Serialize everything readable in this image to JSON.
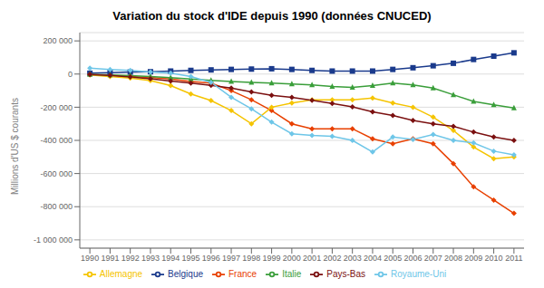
{
  "chart_data": {
    "type": "line",
    "title": "Variation du stock d'IDE depuis 1990 (données CNUCED)",
    "y_label": "Millions d'US $ courants",
    "x": [
      1990,
      1991,
      1992,
      1993,
      1994,
      1995,
      1996,
      1997,
      1998,
      1999,
      2000,
      2001,
      2002,
      2003,
      2004,
      2005,
      2006,
      2007,
      2008,
      2009,
      2010,
      2011
    ],
    "xlim": [
      1989.5,
      2011.5
    ],
    "xticks": [
      1990,
      1991,
      1992,
      1993,
      1994,
      1995,
      1996,
      1997,
      1998,
      1999,
      2000,
      2001,
      2002,
      2003,
      2004,
      2005,
      2006,
      2007,
      2008,
      2009,
      2010,
      2011
    ],
    "ylim": [
      -1050000,
      250000
    ],
    "yticks": [
      {
        "value": -1000000,
        "label": "-1 000 000"
      },
      {
        "value": -800000,
        "label": "-800 000"
      },
      {
        "value": -600000,
        "label": "-600 000"
      },
      {
        "value": -400000,
        "label": "-400 000"
      },
      {
        "value": -200000,
        "label": "-200 000"
      },
      0,
      {
        "value": 200000,
        "label": "200 000"
      }
    ],
    "grid": true,
    "legend": "bottom",
    "series": [
      {
        "name": "Belgique",
        "color": "#1a3a8c",
        "marker": "square",
        "values": [
          5000,
          8000,
          12000,
          14000,
          18000,
          22000,
          25000,
          28000,
          30000,
          32000,
          28000,
          22000,
          18000,
          18000,
          18000,
          28000,
          38000,
          50000,
          65000,
          88000,
          108000,
          128000
        ]
      },
      {
        "name": "France",
        "color": "#e84000",
        "marker": "diamond",
        "values": [
          -2000,
          -8000,
          -15000,
          -20000,
          -30000,
          -45000,
          -55000,
          -100000,
          -155000,
          -220000,
          -300000,
          -330000,
          -330000,
          -330000,
          -390000,
          -420000,
          -390000,
          -420000,
          -540000,
          -680000,
          -760000,
          -840000
        ]
      },
      {
        "name": "Allemagne",
        "color": "#f5c400",
        "marker": "diamond",
        "values": [
          -5000,
          -15000,
          -25000,
          -40000,
          -70000,
          -120000,
          -160000,
          -220000,
          -300000,
          -200000,
          -175000,
          -155000,
          -155000,
          -155000,
          -145000,
          -175000,
          -200000,
          -260000,
          -340000,
          -440000,
          -510000,
          -500000
        ]
      },
      {
        "name": "Italie",
        "color": "#3a9e3a",
        "marker": "triangle",
        "values": [
          -2000,
          -5000,
          -10000,
          -15000,
          -22000,
          -30000,
          -38000,
          -45000,
          -50000,
          -55000,
          -60000,
          -65000,
          -75000,
          -80000,
          -70000,
          -55000,
          -65000,
          -85000,
          -125000,
          -165000,
          -185000,
          -205000
        ]
      },
      {
        "name": "Pays-Bas",
        "color": "#7b1010",
        "marker": "diamond",
        "values": [
          -2000,
          -8000,
          -18000,
          -28000,
          -42000,
          -55000,
          -68000,
          -85000,
          -108000,
          -128000,
          -140000,
          -158000,
          -178000,
          -198000,
          -228000,
          -250000,
          -280000,
          -300000,
          -315000,
          -350000,
          -380000,
          -400000
        ]
      },
      {
        "name": "Royaume-Uni",
        "color": "#6ec6e8",
        "marker": "diamond",
        "values": [
          35000,
          28000,
          22000,
          12000,
          5000,
          -15000,
          -50000,
          -140000,
          -210000,
          -290000,
          -360000,
          -370000,
          -375000,
          -400000,
          -470000,
          -380000,
          -395000,
          -365000,
          -400000,
          -415000,
          -465000,
          -488000
        ]
      }
    ]
  }
}
